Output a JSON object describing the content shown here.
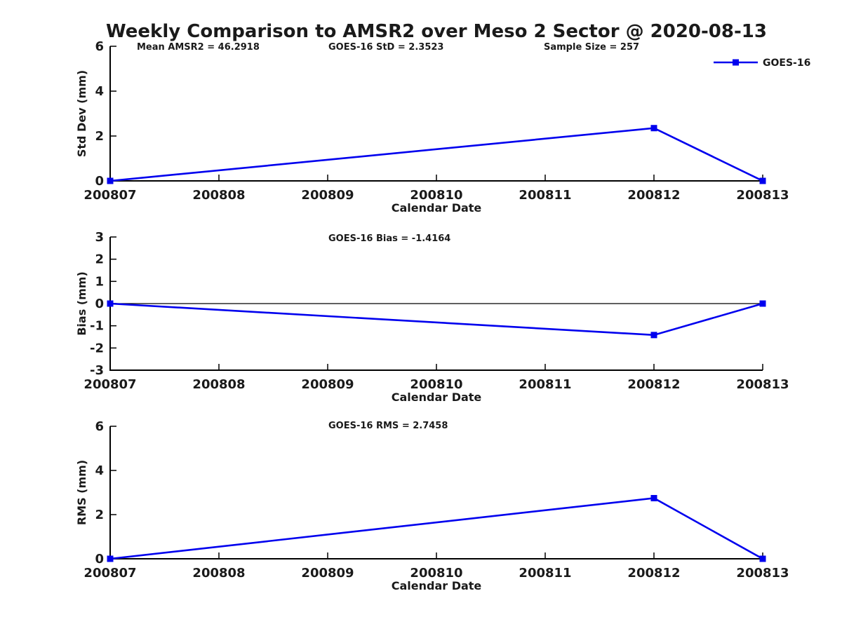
{
  "figure": {
    "title": "Weekly Comparison to AMSR2 over Meso 2 Sector @ 2020-08-13"
  },
  "legend": {
    "label": "GOES-16",
    "position": "top-right"
  },
  "x_axis": {
    "label": "Calendar Date",
    "ticks": [
      "200807",
      "200808",
      "200809",
      "200810",
      "200811",
      "200812",
      "200813"
    ]
  },
  "colors": {
    "line": "#0000ee",
    "axis": "#000000",
    "text": "#1a1a1a"
  },
  "chart_data": [
    {
      "type": "line",
      "name": "std-dev",
      "series_name": "GOES-16",
      "ylabel": "Std Dev (mm)",
      "ylim": [
        0,
        6
      ],
      "yticks": [
        0,
        2,
        4,
        6
      ],
      "x": [
        200807,
        200812,
        200813
      ],
      "values": [
        0,
        2.3523,
        0
      ],
      "marker": "square",
      "grid": false,
      "annotations": [
        "Mean AMSR2 = 46.2918",
        "GOES-16 StD = 2.3523",
        "Sample Size = 257"
      ],
      "stats": {
        "mean_amsr2": 46.2918,
        "goes16_std": 2.3523,
        "sample_size": 257
      }
    },
    {
      "type": "line",
      "name": "bias",
      "series_name": "GOES-16",
      "ylabel": "Bias (mm)",
      "ylim": [
        -3,
        3
      ],
      "yticks": [
        3,
        2,
        1,
        0,
        -1,
        -2,
        -3
      ],
      "zero_line": true,
      "x": [
        200807,
        200812,
        200813
      ],
      "values": [
        0,
        -1.4164,
        0
      ],
      "marker": "square",
      "grid": false,
      "annotations": [
        "GOES-16 Bias  = -1.4164"
      ],
      "stats": {
        "goes16_bias": -1.4164
      }
    },
    {
      "type": "line",
      "name": "rms",
      "series_name": "GOES-16",
      "ylabel": "RMS (mm)",
      "ylim": [
        0,
        6
      ],
      "yticks": [
        0,
        2,
        4,
        6
      ],
      "x": [
        200807,
        200812,
        200813
      ],
      "values": [
        0,
        2.7458,
        0
      ],
      "marker": "square",
      "grid": false,
      "annotations": [
        "GOES-16 RMS = 2.7458"
      ],
      "stats": {
        "goes16_rms": 2.7458
      }
    }
  ]
}
